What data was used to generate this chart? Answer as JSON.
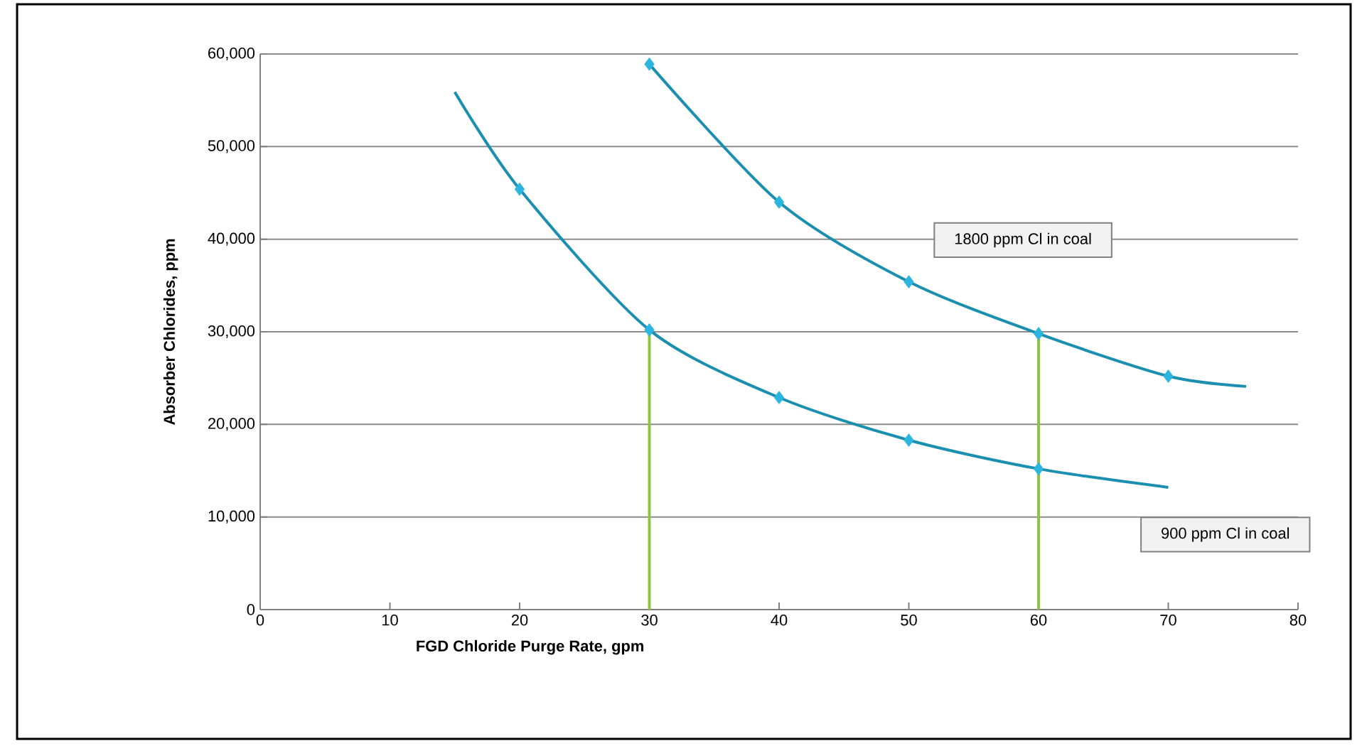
{
  "chart_data": {
    "type": "line",
    "xlabel": "FGD Chloride Purge Rate, gpm",
    "ylabel": "Absorber Chlorides, ppm",
    "xlim": [
      0,
      80
    ],
    "xticks": [
      0,
      10,
      20,
      30,
      40,
      50,
      60,
      70,
      80
    ],
    "ylim": [
      0,
      60000
    ],
    "yticks": [
      0,
      {
        "value": 10000,
        "label": "10,000"
      },
      {
        "value": 20000,
        "label": "20,000"
      },
      {
        "value": 30000,
        "label": "30,000"
      },
      {
        "value": 40000,
        "label": "40,000"
      },
      {
        "value": 50000,
        "label": "50,000"
      },
      {
        "value": 60000,
        "label": "60,000"
      }
    ],
    "grid": "y",
    "annotations": [
      "1800 ppm Cl in coal",
      "900 ppm Cl in coal"
    ],
    "series": [
      {
        "color": "#1a8fb0",
        "marker": "none",
        "x": [
          15,
          20,
          30,
          40,
          50,
          60,
          70
        ],
        "values": [
          55900,
          45400,
          30200,
          22900,
          18300,
          15200,
          13200
        ]
      },
      {
        "color": "#1a8fb0",
        "marker": "none",
        "x": [
          30,
          40,
          50,
          60,
          70,
          76
        ],
        "values": [
          58900,
          44000,
          35400,
          29800,
          25200,
          24100
        ]
      },
      {
        "type": "scatter",
        "color": "#2bb5e0",
        "marker": "diamond",
        "x": [
          20,
          30,
          40,
          50,
          60
        ],
        "values": [
          45400,
          30200,
          22900,
          18300,
          15200
        ]
      },
      {
        "type": "scatter",
        "color": "#2bb5e0",
        "marker": "diamond",
        "x": [
          30,
          40,
          50,
          60,
          70
        ],
        "values": [
          58900,
          44000,
          35400,
          29800,
          25200
        ]
      },
      {
        "type": "line",
        "color": "#8cc63f",
        "marker": "none",
        "x": [
          30,
          30
        ],
        "values": [
          0,
          30200
        ]
      },
      {
        "type": "line",
        "color": "#8cc63f",
        "marker": "none",
        "x": [
          60,
          60
        ],
        "values": [
          0,
          29800
        ]
      }
    ]
  }
}
